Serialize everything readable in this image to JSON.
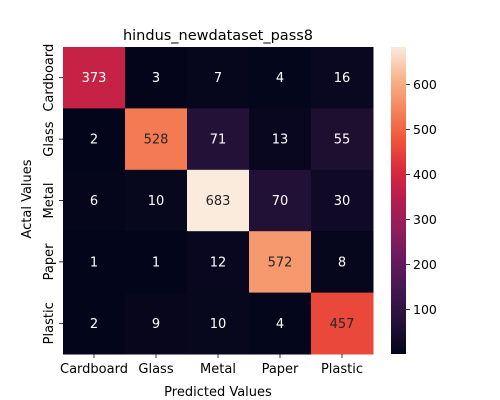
{
  "chart_data": {
    "type": "heatmap",
    "title": "hindus_newdataset_pass8",
    "xlabel": "Predicted Values",
    "ylabel": "Actal Values",
    "x_categories": [
      "Cardboard",
      "Glass",
      "Metal",
      "Paper",
      "Plastic"
    ],
    "y_categories": [
      "Cardboard",
      "Glass",
      "Metal",
      "Paper",
      "Plastic"
    ],
    "values": [
      [
        373,
        3,
        7,
        4,
        16
      ],
      [
        2,
        528,
        71,
        13,
        55
      ],
      [
        6,
        10,
        683,
        70,
        30
      ],
      [
        1,
        1,
        12,
        572,
        8
      ],
      [
        2,
        9,
        10,
        4,
        457
      ]
    ],
    "colorbar": {
      "colormap": "rocket",
      "range": [
        1,
        683
      ],
      "ticks": [
        100,
        200,
        300,
        400,
        500,
        600
      ],
      "tick_labels": [
        "100",
        "200",
        "300",
        "400",
        "500",
        "600"
      ]
    },
    "grid": false,
    "legend": "colorbar-right"
  }
}
